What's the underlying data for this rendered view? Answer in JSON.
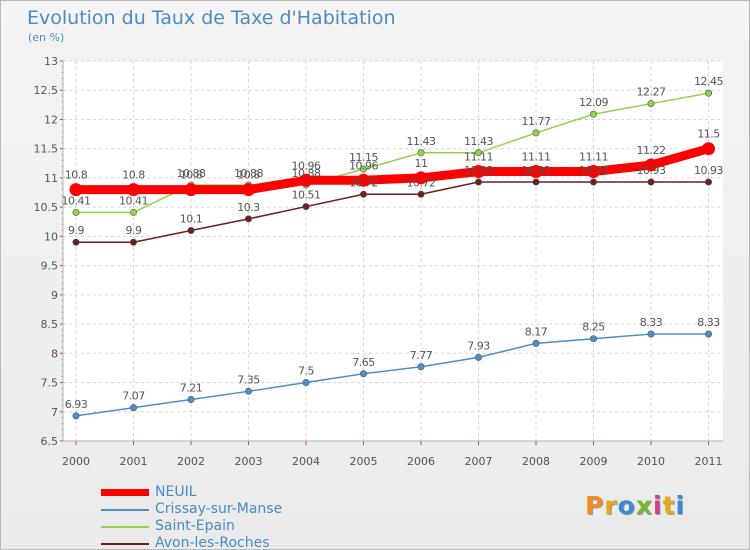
{
  "title": "Evolution du Taux de Taxe d'Habitation",
  "subtitle": "(en %)",
  "logo": {
    "text": "Proxiti",
    "colors": [
      "#f08a24",
      "#e8a81c",
      "#3a8ad4",
      "#7ab82e",
      "#d23c8c",
      "#e8a81c",
      "#3a8ad4"
    ]
  },
  "chart_data": {
    "type": "line",
    "title": "Evolution du Taux de Taxe d'Habitation",
    "ylabel": "(en %)",
    "xlabel": "",
    "categories": [
      "2000",
      "2001",
      "2002",
      "2003",
      "2004",
      "2005",
      "2006",
      "2007",
      "2008",
      "2009",
      "2010",
      "2011"
    ],
    "ylim": [
      6.5,
      13
    ],
    "yticks": [
      "6.5",
      "7",
      "7.5",
      "8",
      "8.5",
      "9",
      "9.5",
      "10",
      "10.5",
      "11",
      "11.5",
      "12",
      "12.5",
      "13"
    ],
    "grid": true,
    "legend_position": "bottom-left",
    "series": [
      {
        "name": "NEUIL",
        "color": "#ff0000",
        "values": [
          10.8,
          10.8,
          10.8,
          10.8,
          10.96,
          10.96,
          11,
          11.11,
          11.11,
          11.11,
          11.22,
          11.5
        ],
        "labels": [
          "10.8",
          "10.8",
          "10.8",
          "10.8",
          "10.96",
          "10.96",
          "11",
          "11.11",
          "11.11",
          "11.11",
          "11.22",
          "11.5"
        ]
      },
      {
        "name": "Crissay-sur-Manse",
        "color": "#4f8fc8",
        "values": [
          6.93,
          7.07,
          7.21,
          7.35,
          7.5,
          7.65,
          7.77,
          7.93,
          8.17,
          8.25,
          8.33,
          8.33
        ],
        "labels": [
          "6.93",
          "7.07",
          "7.21",
          "7.35",
          "7.5",
          "7.65",
          "7.77",
          "7.93",
          "8.17",
          "8.25",
          "8.33",
          "8.33"
        ]
      },
      {
        "name": "Saint-Epain",
        "color": "#8fd44a",
        "values": [
          10.41,
          10.41,
          10.88,
          10.88,
          10.88,
          11.15,
          11.43,
          11.43,
          11.77,
          12.09,
          12.27,
          12.45
        ],
        "labels": [
          "10.41",
          "10.41",
          "10.88",
          "10.88",
          "10.88",
          "11.15",
          "11.43",
          "11.43",
          "11.77",
          "12.09",
          "12.27",
          "12.45"
        ]
      },
      {
        "name": "Avon-les-Roches",
        "color": "#6e1e1e",
        "values": [
          9.9,
          9.9,
          10.1,
          10.3,
          10.51,
          10.72,
          10.72,
          10.93,
          10.93,
          10.93,
          10.93,
          10.93
        ],
        "labels": [
          "9.9",
          "9.9",
          "10.1",
          "10.3",
          "10.51",
          "10.72",
          "10.72",
          "10.93",
          "10.93",
          "10.93",
          "10.93",
          "10.93"
        ]
      }
    ]
  }
}
